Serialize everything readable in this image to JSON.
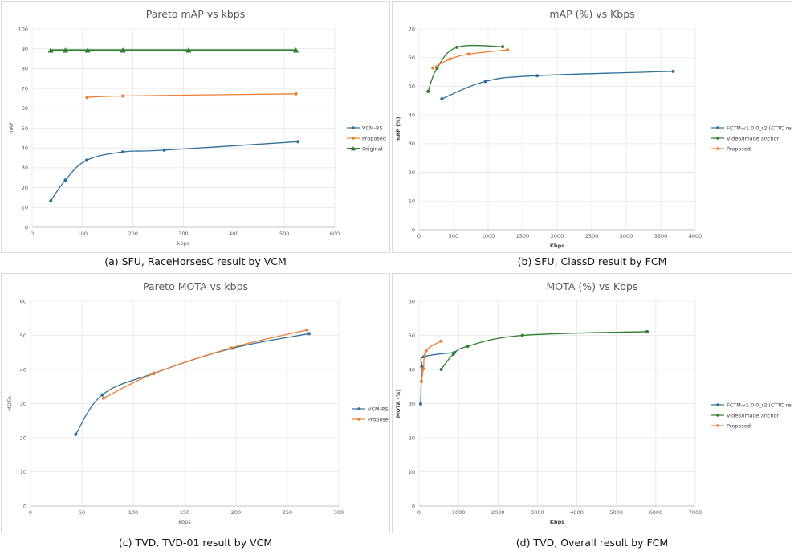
{
  "captions": [
    "(a) SFU, RaceHorsesC result by VCM",
    "(b) SFU, ClassD result by FCM",
    "(c) TVD, TVD-01 result by VCM",
    "(d) TVD, Overall result by FCM"
  ],
  "chart_data": [
    {
      "type": "line",
      "title": "Pareto mAP vs kbps",
      "xlabel": "kbps",
      "ylabel": "mAP",
      "xlim": [
        0,
        600
      ],
      "ylim": [
        0,
        100
      ],
      "xticks": [
        0,
        100,
        200,
        300,
        400,
        500,
        600
      ],
      "yticks": [
        0,
        10,
        20,
        30,
        40,
        50,
        60,
        70,
        80,
        90,
        100
      ],
      "grid": true,
      "legend": "right",
      "series": [
        {
          "name": "VCM-RS",
          "color": "#2e6f9a",
          "marker": "circle",
          "points": [
            [
              37,
              13.3
            ],
            [
              66,
              23.8
            ],
            [
              108,
              33.8
            ],
            [
              180,
              38.0
            ],
            [
              262,
              38.9
            ],
            [
              527,
              43.2
            ]
          ]
        },
        {
          "name": "Proposed",
          "color": "#ed7d31",
          "marker": "circle",
          "points": [
            [
              109,
              65.5
            ],
            [
              180,
              66.2
            ],
            [
              523,
              67.3
            ]
          ]
        },
        {
          "name": "Original",
          "color": "#2f7d2f",
          "marker": "triangle",
          "width": 2.6,
          "points": [
            [
              37,
              89.2
            ],
            [
              66,
              89.2
            ],
            [
              110,
              89.2
            ],
            [
              180,
              89.2
            ],
            [
              310,
              89.2
            ],
            [
              523,
              89.2
            ]
          ]
        }
      ]
    },
    {
      "type": "line",
      "title": "mAP (%) vs Kbps",
      "xlabel": "Kbps",
      "ylabel": "mAP (%)",
      "xlim": [
        0,
        4000
      ],
      "ylim": [
        0,
        70
      ],
      "xticks": [
        0,
        500,
        1000,
        1500,
        2000,
        2500,
        3000,
        3500,
        4000
      ],
      "yticks": [
        0,
        10,
        20,
        30,
        40,
        50,
        60,
        70
      ],
      "grid": true,
      "legend": "right",
      "series": [
        {
          "name": "FCTM-v1.0.0_r2 (CTTC result)",
          "color": "#2e6f9a",
          "marker": "circle",
          "points": [
            [
              330,
              45.6
            ],
            [
              960,
              51.7
            ],
            [
              1710,
              53.7
            ],
            [
              3680,
              55.2
            ]
          ]
        },
        {
          "name": "Video/Image anchor",
          "color": "#2f7d2f",
          "marker": "circle",
          "points": [
            [
              130,
              48.2
            ],
            [
              260,
              56.3
            ],
            [
              550,
              63.6
            ],
            [
              1210,
              63.8
            ]
          ]
        },
        {
          "name": "Proposed",
          "color": "#ed7d31",
          "marker": "circle",
          "points": [
            [
              200,
              56.4
            ],
            [
              450,
              59.5
            ],
            [
              720,
              61.2
            ],
            [
              1280,
              62.7
            ]
          ]
        }
      ]
    },
    {
      "type": "line",
      "title": "Pareto MOTA vs kbps",
      "xlabel": "kbps",
      "ylabel": "MOTA",
      "xlim": [
        0,
        300
      ],
      "ylim": [
        0,
        60
      ],
      "xticks": [
        0,
        50,
        100,
        150,
        200,
        250,
        300
      ],
      "yticks": [
        0,
        10,
        20,
        30,
        40,
        50,
        60
      ],
      "grid": true,
      "legend": "right",
      "series": [
        {
          "name": "VCM-RS",
          "color": "#2e6f9a",
          "marker": "circle",
          "points": [
            [
              44,
              21.0
            ],
            [
              70,
              32.6
            ],
            [
              120,
              38.9
            ],
            [
              196,
              46.2
            ],
            [
              271,
              50.5
            ]
          ]
        },
        {
          "name": "Proposed",
          "color": "#ed7d31",
          "marker": "circle",
          "points": [
            [
              71,
              31.6
            ],
            [
              120,
              38.8
            ],
            [
              195,
              46.3
            ],
            [
              269,
              51.6
            ]
          ]
        }
      ]
    },
    {
      "type": "line",
      "title": "MOTA (%) vs Kbps",
      "xlabel": "Kbps",
      "ylabel": "MOTA (%)",
      "xlim": [
        0,
        7000
      ],
      "ylim": [
        0,
        60
      ],
      "xticks": [
        0,
        1000,
        2000,
        3000,
        4000,
        5000,
        6000,
        7000
      ],
      "yticks": [
        0,
        10,
        20,
        30,
        40,
        50,
        60
      ],
      "grid": true,
      "legend": "right",
      "series": [
        {
          "name": "FCTM-v1.0.0_r2 (CTTC result)",
          "color": "#2e6f9a",
          "marker": "circle",
          "points": [
            [
              40,
              29.9
            ],
            [
              70,
              40.8
            ],
            [
              120,
              43.7
            ],
            [
              900,
              45.0
            ]
          ]
        },
        {
          "name": "Video/Image anchor",
          "color": "#2f7d2f",
          "marker": "circle",
          "points": [
            [
              560,
              40.0
            ],
            [
              870,
              44.5
            ],
            [
              1230,
              46.8
            ],
            [
              2620,
              50.0
            ],
            [
              5780,
              51.1
            ]
          ]
        },
        {
          "name": "Proposed",
          "color": "#ed7d31",
          "marker": "circle",
          "points": [
            [
              60,
              36.5
            ],
            [
              110,
              40.2
            ],
            [
              180,
              45.5
            ],
            [
              560,
              48.3
            ]
          ]
        }
      ]
    }
  ]
}
